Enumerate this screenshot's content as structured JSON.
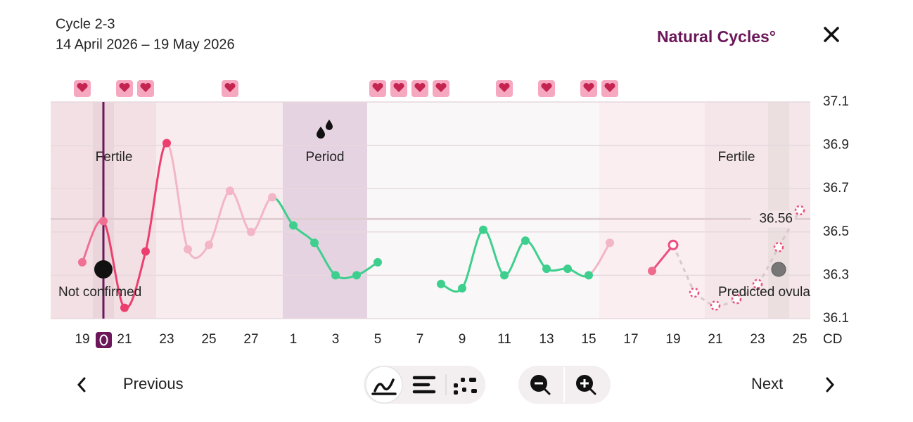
{
  "header": {
    "title": "Cycle 2-3",
    "date_range": "14 April 2026 – 19 May 2026",
    "brand": "Natural Cycles°"
  },
  "chart_data": {
    "type": "line",
    "categories": [
      "19",
      null,
      "21",
      null,
      "23",
      null,
      "25",
      null,
      "27",
      null,
      "1",
      null,
      "3",
      null,
      "5",
      null,
      "7",
      null,
      "9",
      null,
      "11",
      null,
      "13",
      null,
      "15",
      null,
      "17",
      null,
      "19",
      null,
      "21",
      null,
      "23",
      null,
      "25"
    ],
    "series": [
      {
        "color": "#ec4f7e",
        "point_colors": [
          "#f07094",
          "#f07094",
          "#ec3f6e",
          "#ec3f6e",
          "#ec3f6e",
          "#f2b6c6",
          "#f2b6c6",
          "#f2b6c6",
          "#f2b6c6",
          "#f2b6c6",
          "#3ecf8e",
          "#3ecf8e",
          "#3ecf8e",
          "#3ecf8e",
          "#3ecf8e",
          null,
          null,
          "#3ecf8e",
          "#3ecf8e",
          "#3ecf8e",
          "#3ecf8e",
          "#3ecf8e",
          "#3ecf8e",
          "#3ecf8e",
          "#3ecf8e",
          "#f2b6c6",
          null,
          "#ee6b8e",
          "#ec4f7e"
        ],
        "values": [
          36.36,
          36.55,
          36.15,
          36.41,
          36.91,
          36.42,
          36.44,
          36.69,
          36.5,
          36.66,
          36.53,
          36.45,
          36.3,
          36.3,
          36.36,
          null,
          null,
          36.26,
          36.24,
          36.51,
          36.3,
          36.46,
          36.33,
          36.33,
          36.3,
          36.45,
          null,
          36.32,
          36.44,
          null,
          null,
          null,
          null,
          null,
          null
        ]
      },
      {
        "color": "#ec4f7e",
        "values": [
          null,
          null,
          null,
          null,
          null,
          null,
          null,
          null,
          null,
          null,
          null,
          null,
          null,
          null,
          null,
          null,
          null,
          null,
          null,
          null,
          null,
          null,
          null,
          null,
          null,
          null,
          null,
          null,
          null,
          36.22,
          36.16,
          36.19,
          36.26,
          36.43,
          36.6
        ]
      }
    ],
    "ylim": [
      36.1,
      37.1
    ],
    "yticks": [
      36.1,
      36.3,
      36.5,
      36.7,
      36.9,
      37.1
    ],
    "grid": true,
    "x_axis_label": "CD",
    "cover_line": 36.56,
    "annotations": {
      "fertile_1": "Fertile",
      "period": "Period",
      "fertile_2": "Fertile",
      "not_confirmed": "Not confirmed",
      "predicted_ovulation": "Predicted ovula"
    }
  },
  "navigation": {
    "previous": "Previous",
    "next": "Next"
  }
}
